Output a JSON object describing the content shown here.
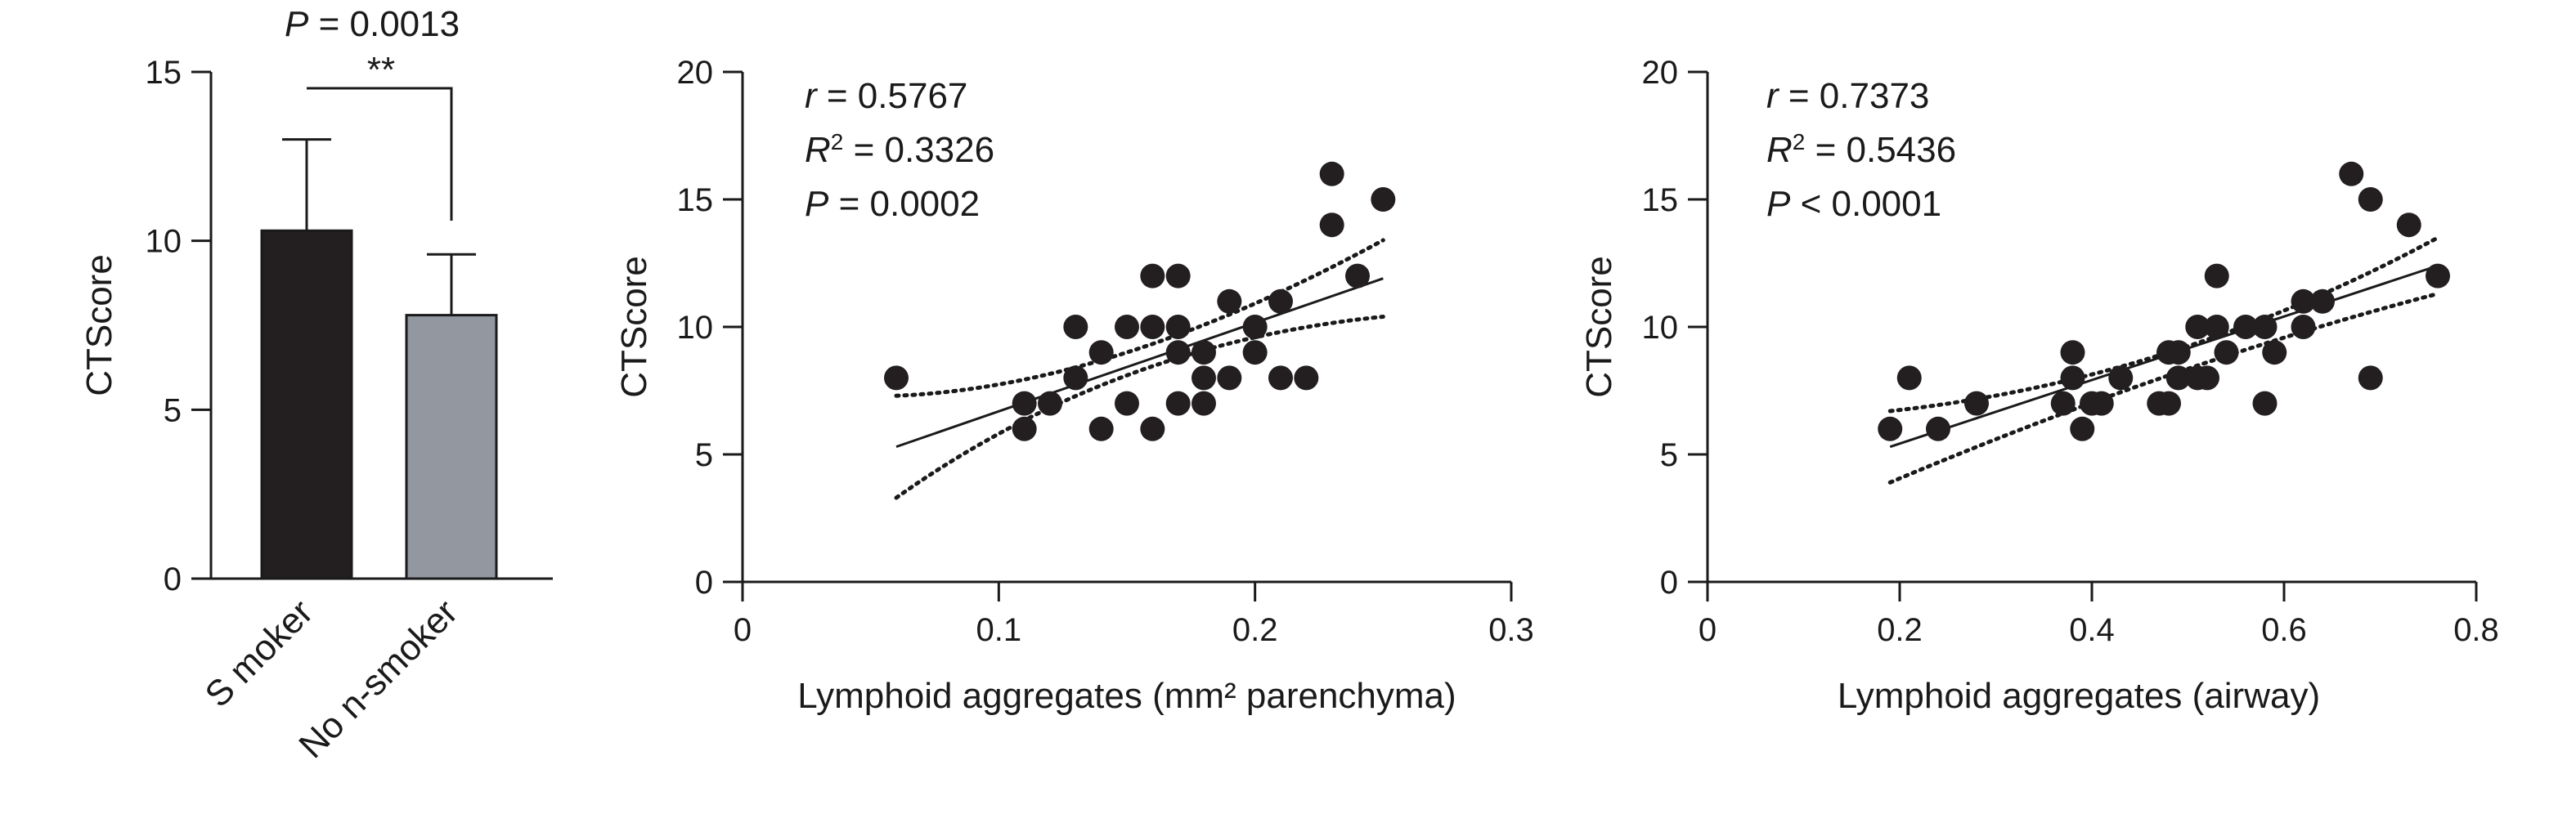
{
  "chart_data": [
    {
      "type": "bar",
      "categories": [
        "S moker",
        "No n-smoker"
      ],
      "values": [
        10.3,
        7.8
      ],
      "errors": [
        2.7,
        1.8
      ],
      "colors": [
        "#231f20",
        "#9297a0"
      ],
      "ylabel": "CTScore",
      "ylim": [
        0,
        15
      ],
      "yticks": [
        0,
        5,
        10,
        15
      ],
      "annotation_p": "P = 0.0013",
      "significance": "**"
    },
    {
      "type": "scatter",
      "xlabel": "Lymphoid aggregates (mm² parenchyma)",
      "ylabel": "CTScore",
      "xlim": [
        0,
        0.3
      ],
      "ylim": [
        0,
        20
      ],
      "xticks": [
        0,
        0.1,
        0.2,
        0.3
      ],
      "yticks": [
        0,
        5,
        10,
        15,
        20
      ],
      "stats": {
        "r": "r = 0.5767",
        "r2": "R² = 0.3326",
        "p": "P = 0.0002"
      },
      "points": [
        [
          0.06,
          8
        ],
        [
          0.11,
          7
        ],
        [
          0.11,
          6
        ],
        [
          0.12,
          7
        ],
        [
          0.13,
          10
        ],
        [
          0.13,
          8
        ],
        [
          0.14,
          9
        ],
        [
          0.14,
          6
        ],
        [
          0.15,
          10
        ],
        [
          0.15,
          7
        ],
        [
          0.16,
          12
        ],
        [
          0.16,
          10
        ],
        [
          0.16,
          6
        ],
        [
          0.17,
          12
        ],
        [
          0.17,
          10
        ],
        [
          0.17,
          9
        ],
        [
          0.17,
          7
        ],
        [
          0.18,
          9
        ],
        [
          0.18,
          8
        ],
        [
          0.18,
          7
        ],
        [
          0.19,
          11
        ],
        [
          0.19,
          8
        ],
        [
          0.2,
          10
        ],
        [
          0.2,
          9
        ],
        [
          0.21,
          11
        ],
        [
          0.21,
          8
        ],
        [
          0.22,
          8
        ],
        [
          0.23,
          16
        ],
        [
          0.23,
          14
        ],
        [
          0.24,
          12
        ],
        [
          0.25,
          15
        ]
      ],
      "fit": {
        "x": [
          0.06,
          0.25
        ],
        "y": [
          5.3,
          11.9
        ]
      },
      "ci_upper": {
        "x": [
          0.06,
          0.15,
          0.25
        ],
        "y": [
          7.3,
          9.0,
          13.4
        ]
      },
      "ci_lower": {
        "x": [
          0.06,
          0.15,
          0.25
        ],
        "y": [
          3.3,
          8.1,
          10.4
        ]
      }
    },
    {
      "type": "scatter",
      "xlabel": "Lymphoid aggregates (airway)",
      "ylabel": "CTScore",
      "xlim": [
        0,
        0.8
      ],
      "ylim": [
        0,
        20
      ],
      "xticks": [
        0,
        0.2,
        0.4,
        0.6,
        0.8
      ],
      "yticks": [
        0,
        5,
        10,
        15,
        20
      ],
      "stats": {
        "r": "r = 0.7373",
        "r2": "R² = 0.5436",
        "p": "P < 0.0001"
      },
      "points": [
        [
          0.19,
          6
        ],
        [
          0.21,
          8
        ],
        [
          0.24,
          6
        ],
        [
          0.28,
          7
        ],
        [
          0.37,
          7
        ],
        [
          0.38,
          9
        ],
        [
          0.38,
          8
        ],
        [
          0.39,
          6
        ],
        [
          0.4,
          7
        ],
        [
          0.41,
          7
        ],
        [
          0.43,
          8
        ],
        [
          0.47,
          7
        ],
        [
          0.48,
          9
        ],
        [
          0.48,
          7
        ],
        [
          0.49,
          9
        ],
        [
          0.49,
          8
        ],
        [
          0.51,
          10
        ],
        [
          0.51,
          8
        ],
        [
          0.52,
          8
        ],
        [
          0.53,
          12
        ],
        [
          0.53,
          10
        ],
        [
          0.54,
          9
        ],
        [
          0.56,
          10
        ],
        [
          0.58,
          10
        ],
        [
          0.58,
          7
        ],
        [
          0.59,
          9
        ],
        [
          0.62,
          11
        ],
        [
          0.62,
          10
        ],
        [
          0.64,
          11
        ],
        [
          0.67,
          16
        ],
        [
          0.69,
          15
        ],
        [
          0.69,
          8
        ],
        [
          0.73,
          14
        ],
        [
          0.76,
          12
        ]
      ],
      "fit": {
        "x": [
          0.19,
          0.76
        ],
        "y": [
          5.3,
          12.4
        ]
      },
      "ci_upper": {
        "x": [
          0.19,
          0.48,
          0.76
        ],
        "y": [
          6.7,
          9.0,
          13.5
        ]
      },
      "ci_lower": {
        "x": [
          0.19,
          0.48,
          0.76
        ],
        "y": [
          3.9,
          8.1,
          11.3
        ]
      }
    }
  ]
}
